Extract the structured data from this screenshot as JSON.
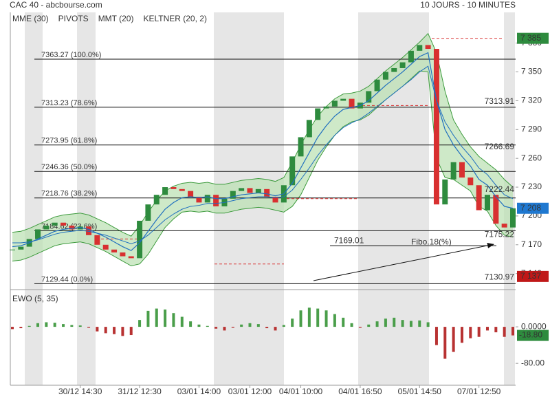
{
  "chart_data": {
    "type": "candlestick",
    "title": "CAC 40 - abcbourse.com",
    "subtitle": "10 JOURS - 10 MINUTES",
    "legend": [
      {
        "name": "MME (30)",
        "color": "#1f6fbf"
      },
      {
        "name": "PIVOTS",
        "color": "#555555"
      },
      {
        "name": "MMT (20)",
        "color": "#1f6fbf"
      },
      {
        "name": "KELTNER (20, 2)",
        "color": "#3c9a3c"
      }
    ],
    "categories": [
      null,
      null,
      null,
      null,
      null,
      null,
      null,
      null,
      "30/12 14:30",
      null,
      null,
      null,
      null,
      null,
      null,
      "31/12 12:30",
      null,
      null,
      null,
      null,
      null,
      null,
      "03/01 14:00",
      null,
      null,
      null,
      null,
      null,
      "03/01 12:00",
      null,
      null,
      null,
      null,
      null,
      "04/01 10:00",
      null,
      null,
      null,
      null,
      null,
      null,
      "04/01 16:50",
      null,
      null,
      null,
      null,
      null,
      null,
      "05/01 14:50",
      null,
      null,
      null,
      null,
      null,
      null,
      "07/01 12:50",
      null,
      null,
      null,
      null
    ],
    "close": [
      7165,
      7168,
      7176,
      7186,
      7190,
      7193,
      7190,
      7186,
      7189,
      7180,
      7170,
      7165,
      7162,
      7158,
      7156,
      7195,
      7212,
      7222,
      7230,
      7228,
      7226,
      7220,
      7214,
      7222,
      7210,
      7218,
      7226,
      7229,
      7224,
      7228,
      7220,
      7214,
      7232,
      7262,
      7282,
      7300,
      7312,
      7314,
      7320,
      7322,
      7312,
      7318,
      7330,
      7342,
      7350,
      7354,
      7360,
      7372,
      7378,
      7374,
      7212,
      7238,
      7256,
      7240,
      7232,
      7206,
      7222,
      7192,
      7188,
      7208
    ],
    "up_color": "#2e8b3e",
    "down_color": "#d83030",
    "series": [
      {
        "name": "MMT (20)",
        "color": "#1f6fbf",
        "values": [
          7168,
          7169,
          7172,
          7176,
          7180,
          7184,
          7186,
          7187,
          7188,
          7186,
          7182,
          7178,
          7173,
          7168,
          7164,
          7172,
          7184,
          7196,
          7207,
          7214,
          7219,
          7220,
          7219,
          7220,
          7218,
          7218,
          7220,
          7222,
          7223,
          7224,
          7223,
          7221,
          7223,
          7234,
          7250,
          7266,
          7282,
          7294,
          7304,
          7311,
          7313,
          7315,
          7320,
          7328,
          7336,
          7343,
          7350,
          7358,
          7366,
          7370,
          7320,
          7290,
          7274,
          7262,
          7252,
          7238,
          7232,
          7220,
          7210,
          7208
        ]
      },
      {
        "name": "MME (30)",
        "color": "#1f6fbf",
        "values": [
          7172,
          7172,
          7173,
          7175,
          7178,
          7181,
          7183,
          7184,
          7185,
          7184,
          7182,
          7180,
          7177,
          7174,
          7171,
          7174,
          7180,
          7188,
          7196,
          7202,
          7207,
          7210,
          7211,
          7213,
          7213,
          7214,
          7216,
          7218,
          7219,
          7220,
          7220,
          7219,
          7220,
          7227,
          7238,
          7250,
          7263,
          7274,
          7284,
          7292,
          7297,
          7301,
          7307,
          7314,
          7321,
          7328,
          7335,
          7342,
          7350,
          7356,
          7320,
          7298,
          7284,
          7272,
          7262,
          7250,
          7243,
          7232,
          7222,
          7218
        ]
      }
    ],
    "keltner": {
      "color": "#3c9a3c",
      "fill": "#b9dfb0",
      "upper": [
        7183,
        7184,
        7187,
        7191,
        7195,
        7199,
        7201,
        7202,
        7203,
        7201,
        7197,
        7193,
        7188,
        7183,
        7179,
        7190,
        7204,
        7216,
        7226,
        7231,
        7234,
        7235,
        7234,
        7235,
        7233,
        7233,
        7235,
        7237,
        7238,
        7239,
        7238,
        7236,
        7240,
        7256,
        7274,
        7290,
        7304,
        7314,
        7322,
        7327,
        7328,
        7330,
        7335,
        7343,
        7351,
        7358,
        7365,
        7373,
        7381,
        7390,
        7370,
        7330,
        7300,
        7285,
        7272,
        7262,
        7255,
        7248,
        7238,
        7230
      ],
      "lower": [
        7153,
        7154,
        7157,
        7161,
        7165,
        7169,
        7171,
        7172,
        7173,
        7171,
        7167,
        7163,
        7158,
        7153,
        7148,
        7150,
        7160,
        7174,
        7188,
        7197,
        7204,
        7205,
        7204,
        7205,
        7203,
        7203,
        7205,
        7207,
        7208,
        7209,
        7208,
        7206,
        7204,
        7210,
        7222,
        7240,
        7258,
        7272,
        7284,
        7293,
        7298,
        7300,
        7305,
        7313,
        7321,
        7328,
        7335,
        7343,
        7351,
        7350,
        7260,
        7240,
        7238,
        7232,
        7226,
        7210,
        7205,
        7190,
        7180,
        7178
      ]
    },
    "ylim": [
      7124,
      7412
    ],
    "yticks": [
      {
        "value": 7140,
        "label": "7 140"
      },
      {
        "value": 7170,
        "label": "7 170"
      },
      {
        "value": 7200,
        "label": "7 200"
      },
      {
        "value": 7230,
        "label": "7 230"
      },
      {
        "value": 7260,
        "label": "7 260"
      },
      {
        "value": 7290,
        "label": "7 290"
      },
      {
        "value": 7320,
        "label": "7 320"
      },
      {
        "value": 7350,
        "label": "7 350"
      },
      {
        "value": 7380,
        "label": "7 380"
      }
    ],
    "fibonacci": [
      {
        "value": 7363.27,
        "label": "7363.27 (100.0%)"
      },
      {
        "value": 7313.23,
        "label": "7313.23 (78.6%)"
      },
      {
        "value": 7273.95,
        "label": "7273.95 (61.8%)"
      },
      {
        "value": 7246.36,
        "label": "7246.36 (50.0%)"
      },
      {
        "value": 7218.76,
        "label": "7218.76 (38.2%)"
      },
      {
        "value": 7184.62,
        "label": "7184.62 (23.6%)"
      },
      {
        "value": 7129.44,
        "label": "7129.44 (0.0%)"
      }
    ],
    "pivots": {
      "color": "#d83030",
      "values": [
        7385,
        7315,
        7218,
        7150,
        7176
      ]
    },
    "projections": [
      {
        "value": 7313.91,
        "color": "#2e8b3e"
      },
      {
        "value": 7266.69,
        "color": "#2e8b3e"
      },
      {
        "value": 7222.44,
        "color": "#333333"
      },
      {
        "value": 7175.22,
        "color": "#d83030"
      },
      {
        "value": 7130.97,
        "color": "#d83030"
      }
    ],
    "price_boxes": [
      {
        "value": 7385,
        "label": "7 385",
        "color": "#2e8b3e"
      },
      {
        "value": 7208,
        "label": "7 208",
        "color": "#1f78d0"
      },
      {
        "value": 7137,
        "label": "7 137",
        "color": "#c01818"
      }
    ],
    "annotations": [
      {
        "value": 7169.01,
        "label": "7169.01"
      },
      {
        "label": "Fibo.18(%)"
      }
    ],
    "ewo": {
      "title": "EWO (5, 35)",
      "values": [
        -5,
        -3,
        2,
        8,
        10,
        9,
        6,
        4,
        3,
        -2,
        -10,
        -14,
        -16,
        -20,
        -18,
        15,
        35,
        40,
        38,
        30,
        22,
        12,
        5,
        2,
        -4,
        -8,
        -2,
        5,
        8,
        6,
        -3,
        -8,
        4,
        18,
        36,
        42,
        40,
        36,
        28,
        20,
        8,
        -2,
        5,
        12,
        18,
        20,
        15,
        13,
        14,
        10,
        -40,
        -70,
        -55,
        -35,
        -25,
        -22,
        -8,
        -12,
        -22,
        -18.8
      ],
      "up_color": "#4a9e4a",
      "down_color": "#b83232",
      "ylim": [
        -125,
        71
      ],
      "yticks": [
        {
          "value": 0,
          "label": "0.0000"
        },
        {
          "value": -80,
          "label": "-80.00"
        }
      ],
      "last": {
        "value": -18.8,
        "label": "-18.80",
        "color": "#2e8b3e"
      }
    }
  }
}
